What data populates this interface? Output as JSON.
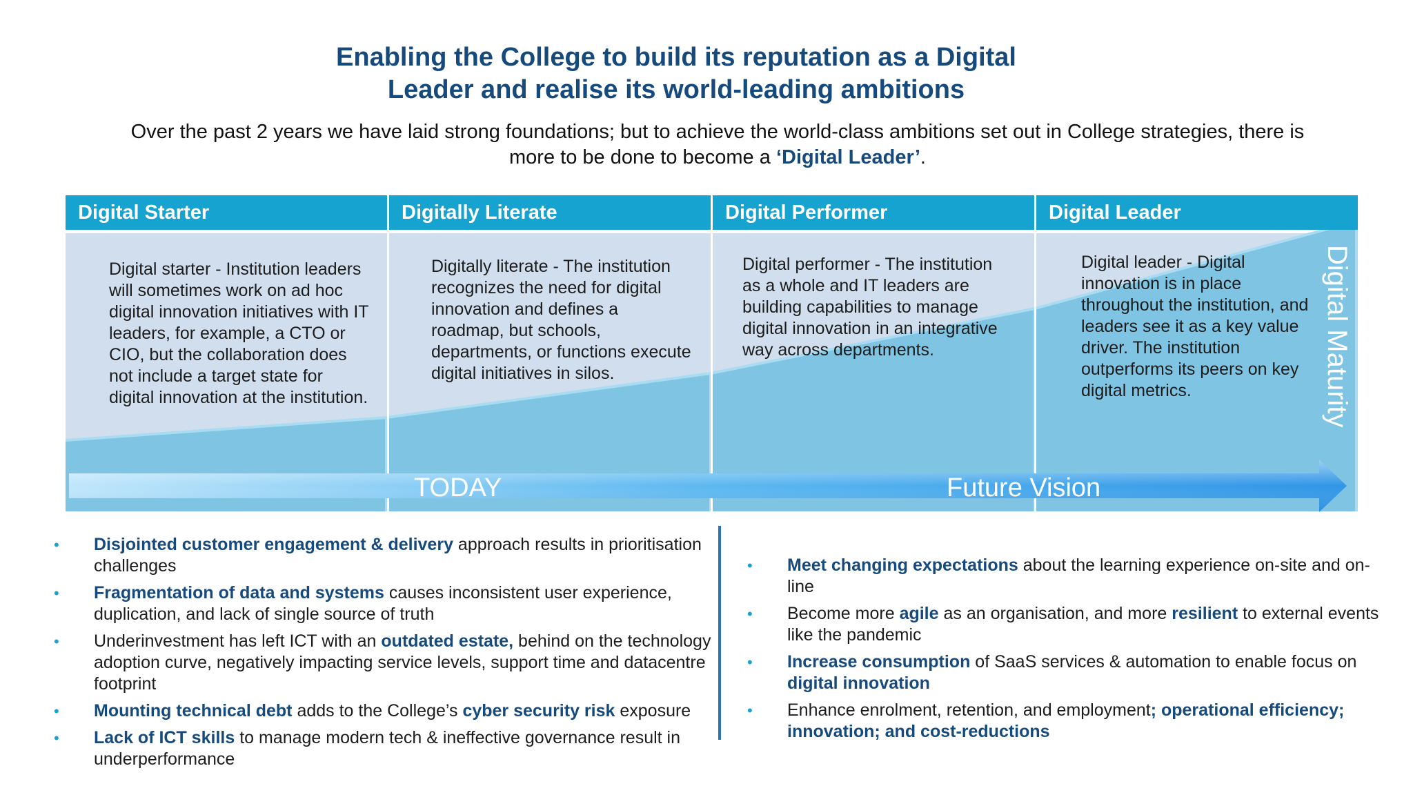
{
  "title": {
    "line1": "Enabling the College to build its reputation as a Digital",
    "line2": "Leader and realise its world-leading ambitions"
  },
  "subtitle": {
    "text_before": "Over the past 2 years we have laid strong foundations; but to achieve the world-class ambitions set out in College strategies, there is more to be done to become a ",
    "highlight": "‘Digital Leader’",
    "text_after": "."
  },
  "stages": [
    {
      "header": "Digital Starter",
      "text": "Digital starter - Institution leaders will sometimes work on ad hoc digital innovation initiatives with IT leaders, for example, a CTO or CIO, but the collaboration does not include a target state for digital innovation at the institution."
    },
    {
      "header": "Digitally Literate",
      "text": "Digitally literate - The institution recognizes the need for digital innovation and defines a roadmap, but schools, departments, or functions execute digital initiatives in silos."
    },
    {
      "header": "Digital Performer",
      "text": "Digital performer - The institution as a whole and IT leaders are building capabilities to manage digital innovation in an integrative way across departments."
    },
    {
      "header": "Digital Leader",
      "text": "Digital leader - Digital innovation is in place throughout the institution, and leaders see it as a key value driver. The institution outperforms its peers on key digital metrics."
    }
  ],
  "maturity_label": "Digital Maturity",
  "arrow": {
    "today": "TODAY",
    "future": "Future Vision"
  },
  "colors": {
    "accent": "#17a3d0",
    "navy": "#174a7c",
    "panel": "#d0deee",
    "ramp": "#7fc4e3"
  },
  "left_bullets": [
    [
      {
        "b": "Disjointed customer engagement & delivery"
      },
      {
        "t": " approach results in prioritisation challenges"
      }
    ],
    [
      {
        "b": "Fragmentation of data and systems"
      },
      {
        "t": " causes inconsistent user experience, duplication, and lack of single source of truth"
      }
    ],
    [
      {
        "t": "Underinvestment has left ICT with an "
      },
      {
        "b": "outdated estate,"
      },
      {
        "t": " behind on the technology adoption curve, negatively impacting service levels, support time and datacentre footprint"
      }
    ],
    [
      {
        "b": "Mounting technical debt"
      },
      {
        "t": " adds to the College’s "
      },
      {
        "b": "cyber security risk"
      },
      {
        "t": " exposure"
      }
    ],
    [
      {
        "b": "Lack of ICT skills"
      },
      {
        "t": " to manage modern tech & ineffective governance result in underperformance"
      }
    ]
  ],
  "right_bullets": [
    [
      {
        "b": "Meet changing expectations"
      },
      {
        "t": " about the learning experience on-site and on-line"
      }
    ],
    [
      {
        "t": "Become more "
      },
      {
        "b": "agile"
      },
      {
        "t": " as an organisation, and more "
      },
      {
        "b": "resilient"
      },
      {
        "t": " to external events like the pandemic"
      }
    ],
    [
      {
        "b": "Increase consumption"
      },
      {
        "t": " of SaaS services & automation to enable focus on "
      },
      {
        "b": "digital innovation"
      }
    ],
    [
      {
        "t": "Enhance enrolment, retention, and employment"
      },
      {
        "b": "; operational efficiency; innovation; and cost-reductions"
      }
    ]
  ],
  "bullet_glyph": "•"
}
